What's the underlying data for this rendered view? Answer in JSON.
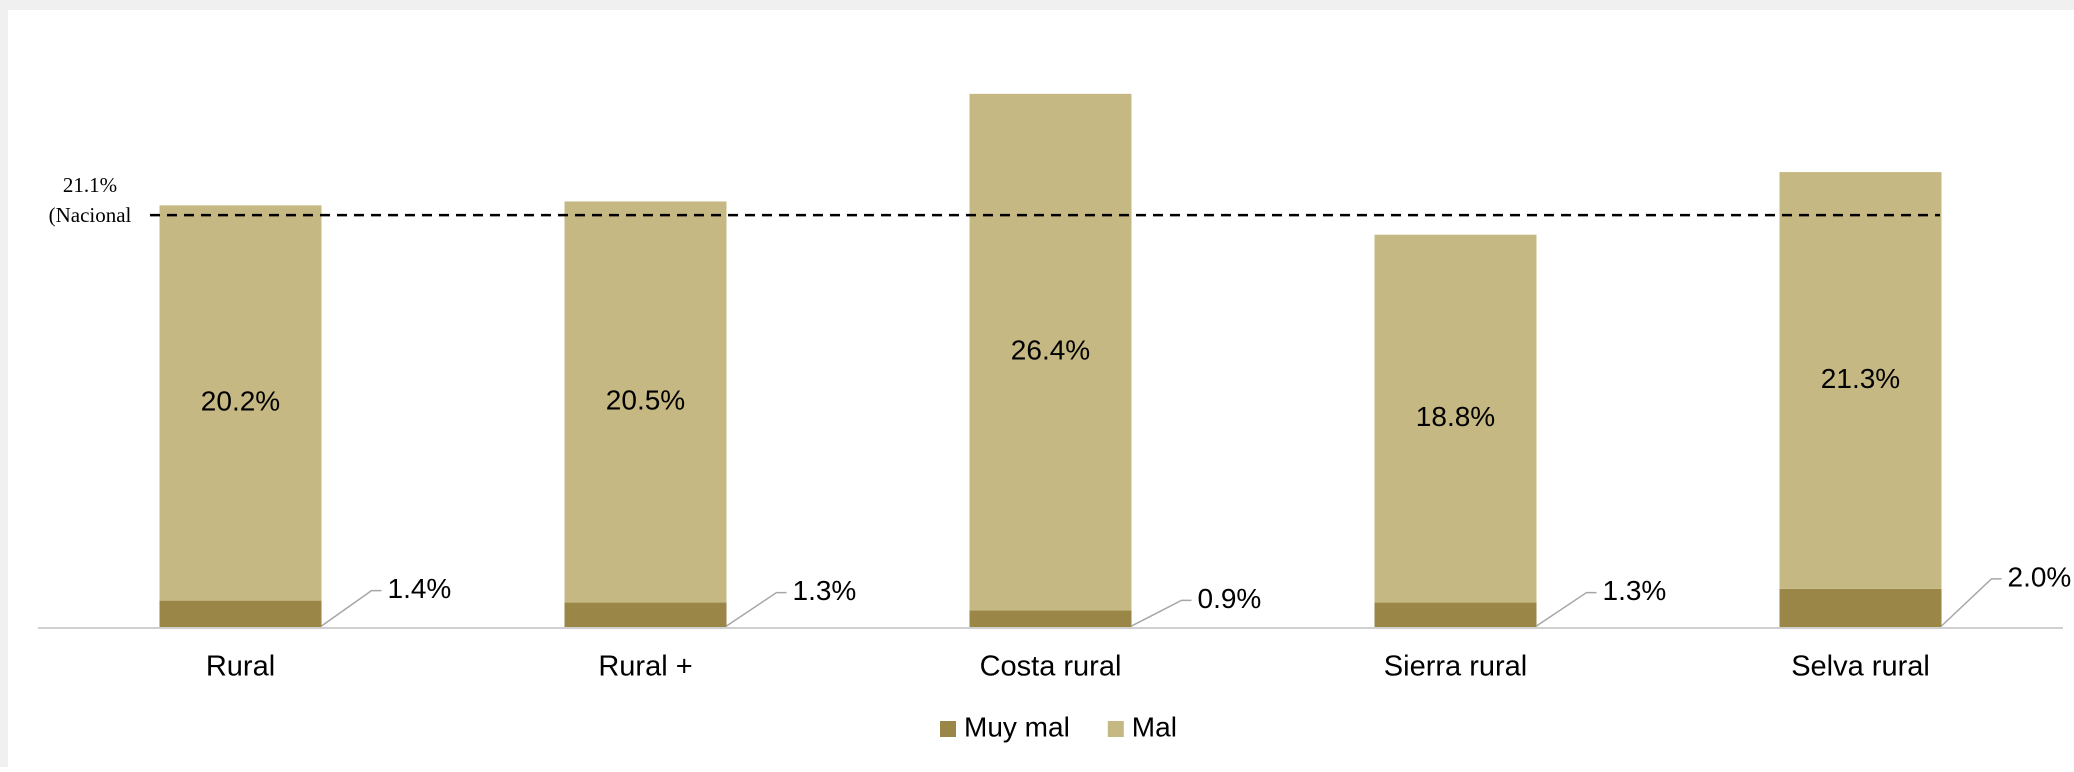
{
  "chart_data": {
    "type": "stacked_bar",
    "categories": [
      "Rural",
      "Rural +",
      "Costa rural",
      "Sierra rural",
      "Selva rural"
    ],
    "series": [
      {
        "name": "Muy mal",
        "color": "#9a8646",
        "values": [
          1.4,
          1.3,
          0.9,
          1.3,
          2.0
        ],
        "value_labels": [
          "1.4%",
          "1.3%",
          "0.9%",
          "1.3%",
          "2.0%"
        ]
      },
      {
        "name": "Mal",
        "color": "#c5b883",
        "values": [
          20.2,
          20.5,
          26.4,
          18.8,
          21.3
        ],
        "value_labels": [
          "20.2%",
          "20.5%",
          "26.4%",
          "18.8%",
          "21.3%"
        ]
      }
    ],
    "ylim": [
      0,
      30
    ],
    "reference_line": {
      "value": 21.1,
      "label": "21.1%",
      "text": "(Nacional"
    },
    "legend": "bottom"
  }
}
